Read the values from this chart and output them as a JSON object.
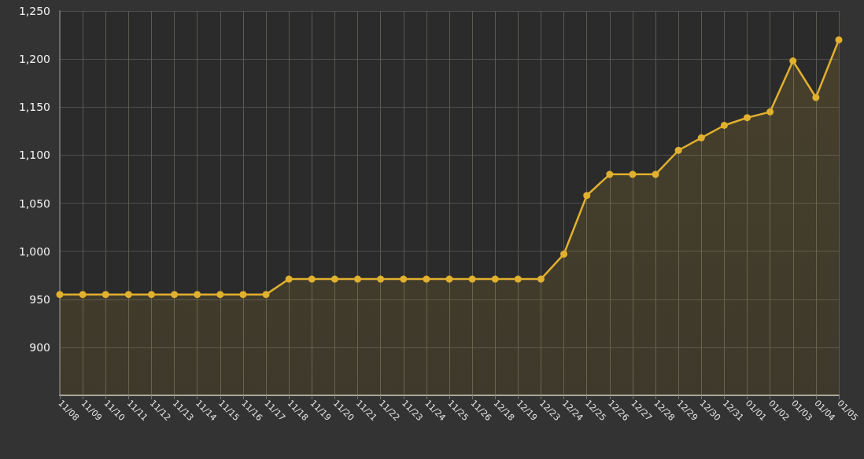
{
  "chart_data": {
    "type": "area",
    "categories": [
      "11/08",
      "11/09",
      "11/10",
      "11/11",
      "11/12",
      "11/13",
      "11/14",
      "11/15",
      "11/16",
      "11/17",
      "11/18",
      "11/19",
      "11/20",
      "11/21",
      "11/22",
      "11/23",
      "11/24",
      "11/25",
      "11/26",
      "12/18",
      "12/19",
      "12/23",
      "12/24",
      "12/25",
      "12/26",
      "12/27",
      "12/28",
      "12/29",
      "12/30",
      "12/31",
      "01/01",
      "01/02",
      "01/03",
      "01/04",
      "01/05"
    ],
    "series": [
      {
        "color": "#e0b02e",
        "values": [
          955,
          955,
          955,
          955,
          955,
          955,
          955,
          955,
          955,
          955,
          971,
          971,
          971,
          971,
          971,
          971,
          971,
          971,
          971,
          971,
          971,
          971,
          997,
          1058,
          1080,
          1080,
          1080,
          1105,
          1118,
          1131,
          1139,
          1145,
          1198,
          1160,
          1220
        ]
      }
    ],
    "ylim": [
      850,
      1250
    ],
    "yticks": [
      {
        "value": 900,
        "label": "900"
      },
      {
        "value": 950,
        "label": "950"
      },
      {
        "value": 1000,
        "label": "1,000"
      },
      {
        "value": 1050,
        "label": "1,050"
      },
      {
        "value": 1100,
        "label": "1,100"
      },
      {
        "value": 1150,
        "label": "1,150"
      },
      {
        "value": 1200,
        "label": "1,200"
      },
      {
        "value": 1250,
        "label": "1,250"
      }
    ],
    "grid": true,
    "marker": "circle",
    "line_style": "solid"
  }
}
